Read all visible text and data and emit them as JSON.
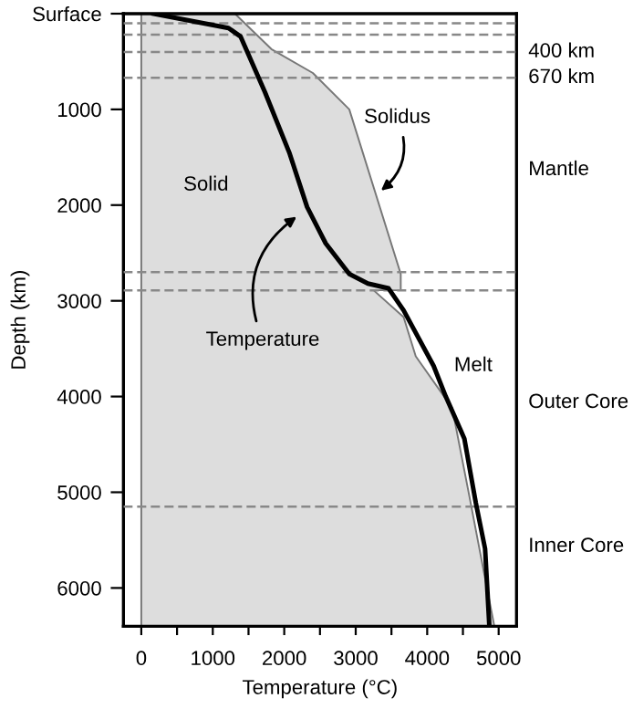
{
  "chart_data": {
    "type": "line",
    "xlabel": "Temperature (°C)",
    "ylabel": "Depth (km)",
    "xlim": [
      -250,
      5250
    ],
    "ylim": [
      6400,
      0
    ],
    "xticks": [
      0,
      {
        "value": 500,
        "label": null
      },
      1000,
      {
        "value": 1500,
        "label": null
      },
      2000,
      {
        "value": 2500,
        "label": null
      },
      3000,
      {
        "value": 3500,
        "label": null
      },
      4000,
      {
        "value": 4500,
        "label": null
      },
      5000
    ],
    "yticks": [
      {
        "value": 0,
        "label": "Surface"
      },
      1000,
      2000,
      3000,
      4000,
      5000,
      6000
    ],
    "grid": false,
    "legend": false,
    "orientation": "horizontal",
    "series": [
      {
        "type": "area",
        "color": "#dddddd",
        "values": [
          1310,
          1820,
          2400,
          2910,
          3630,
          3630,
          3250,
          3670,
          3840,
          4350,
          4600,
          4810,
          4940
        ],
        "x": [
          0,
          370,
          620,
          1000,
          2720,
          2890,
          2890,
          3170,
          3580,
          4120,
          5080,
          5900,
          6400
        ]
      },
      {
        "color": "#000000",
        "values": [
          170,
          1220,
          1390,
          1730,
          2070,
          2320,
          2580,
          2910,
          3170,
          3460,
          3670,
          4090,
          4260,
          4520,
          4680,
          4810,
          4870
        ],
        "x": [
          0,
          150,
          240,
          820,
          1450,
          2020,
          2400,
          2720,
          2820,
          2870,
          3100,
          3680,
          4000,
          4440,
          5110,
          5590,
          6400
        ]
      }
    ],
    "ref_lines": [
      {
        "axis": "y",
        "value": 100,
        "color": "#888888",
        "line_style": "dashed"
      },
      {
        "axis": "y",
        "value": 220,
        "color": "#888888",
        "line_style": "dashed"
      },
      {
        "axis": "y",
        "value": 400,
        "label": "400 km",
        "color": "#888888",
        "line_style": "dashed"
      },
      {
        "axis": "y",
        "value": 670,
        "label": "670 km",
        "color": "#888888",
        "line_style": "dashed"
      },
      {
        "axis": "y",
        "value": 2700,
        "color": "#888888",
        "line_style": "dashed"
      },
      {
        "axis": "y",
        "value": 2890,
        "color": "#888888",
        "line_style": "dashed"
      },
      {
        "axis": "y",
        "value": 5150,
        "color": "#888888",
        "line_style": "dashed"
      }
    ],
    "annotations": [
      "Solid",
      "Melt",
      "Solidus",
      {
        "text": "Temperature",
        "x": 2230,
        "y": 2090
      },
      "Mantle",
      "Outer Core",
      "Inner Core"
    ]
  }
}
